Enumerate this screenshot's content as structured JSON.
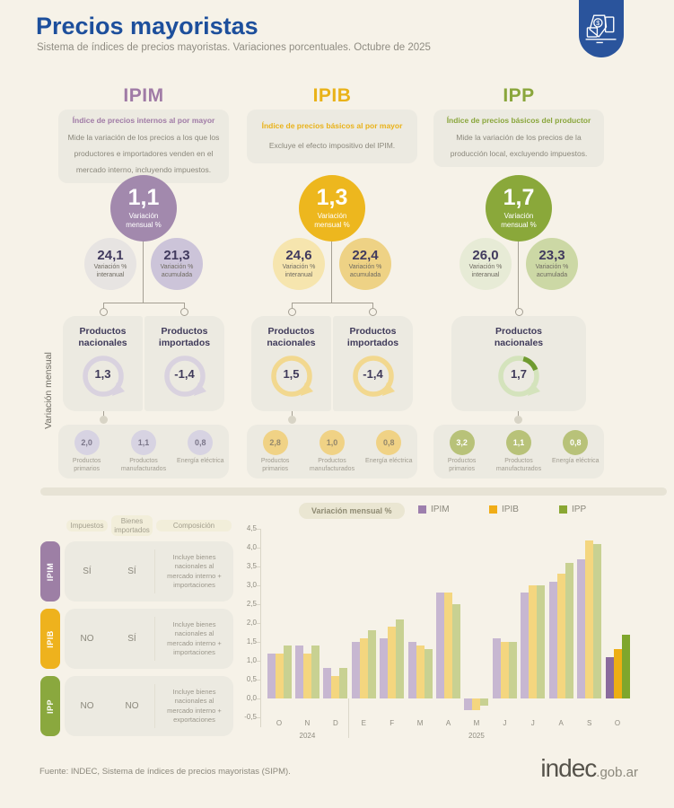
{
  "header": {
    "title": "Precios mayoristas",
    "subtitle": "Sistema de índices de precios mayoristas. Variaciones porcentuales. Octubre de 2025",
    "badge_icon": "price-tags-icon",
    "accent_color": "#1d4f9c",
    "badge_color": "#2a549c"
  },
  "section_label": "Variación mensual",
  "indices": [
    {
      "name": "IPIM",
      "color": "#9d7fa5",
      "subtitle": "Índice de precios internos al por mayor",
      "description": "Mide la variación de los precios a los que los productores e importadores venden en el mercado interno, incluyendo impuestos.",
      "monthly": "1,1",
      "monthly_label": "Variación mensual %",
      "interanual": "24,1",
      "interanual_label": "Variación % interanual",
      "acumulada": "21,3",
      "acumulada_label": "Variación % acumulada",
      "products": [
        {
          "label": "Productos nacionales",
          "value": "1,3"
        },
        {
          "label": "Productos importados",
          "value": "-1,4"
        }
      ],
      "breakdown": [
        {
          "label": "Productos primarios",
          "value": "2,0"
        },
        {
          "label": "Productos manufacturados",
          "value": "1,1"
        },
        {
          "label": "Energía eléctrica",
          "value": "0,8"
        }
      ]
    },
    {
      "name": "IPIB",
      "color": "#eeb21d",
      "subtitle": "Índice de precios básicos al por mayor",
      "description": "Excluye el efecto impositivo del IPIM.",
      "monthly": "1,3",
      "monthly_label": "Variación mensual %",
      "interanual": "24,6",
      "interanual_label": "Variación % interanual",
      "acumulada": "22,4",
      "acumulada_label": "Variación % acumulada",
      "products": [
        {
          "label": "Productos nacionales",
          "value": "1,5"
        },
        {
          "label": "Productos importados",
          "value": "-1,4"
        }
      ],
      "breakdown": [
        {
          "label": "Productos primarios",
          "value": "2,8"
        },
        {
          "label": "Productos manufacturados",
          "value": "1,0"
        },
        {
          "label": "Energía eléctrica",
          "value": "0,8"
        }
      ]
    },
    {
      "name": "IPP",
      "color": "#8aa83e",
      "subtitle": "Índice de precios básicos del productor",
      "description": "Mide la variación de los precios de la producción local, excluyendo impuestos.",
      "monthly": "1,7",
      "monthly_label": "Variación mensual %",
      "interanual": "26,0",
      "interanual_label": "Variación % interanual",
      "acumulada": "23,3",
      "acumulada_label": "Variación % acumulada",
      "products": [
        {
          "label": "Productos nacionales",
          "value": "1,7"
        }
      ],
      "breakdown": [
        {
          "label": "Productos primarios",
          "value": "3,2"
        },
        {
          "label": "Productos manufacturados",
          "value": "1,1"
        },
        {
          "label": "Energía eléctrica",
          "value": "0,8"
        }
      ]
    }
  ],
  "comparison_table": {
    "headers": [
      "Impuestos",
      "Bienes importados",
      "Composición"
    ],
    "rows": [
      {
        "index": "IPIM",
        "impuestos": "SÍ",
        "bienes_importados": "SÍ",
        "composicion": "Incluye bienes nacionales al mercado interno + importaciones"
      },
      {
        "index": "IPIB",
        "impuestos": "NO",
        "bienes_importados": "SÍ",
        "composicion": "Incluye bienes nacionales al mercado interno + importaciones"
      },
      {
        "index": "IPP",
        "impuestos": "NO",
        "bienes_importados": "NO",
        "composicion": "Incluye bienes nacionales al mercado interno + exportaciones"
      }
    ]
  },
  "chart_data": {
    "type": "bar",
    "title": "Variación mensual %",
    "categories": [
      "O",
      "N",
      "D",
      "E",
      "F",
      "M",
      "A",
      "M",
      "J",
      "J",
      "A",
      "S",
      "O"
    ],
    "year_labels": [
      {
        "label": "2024",
        "month_index": 1
      },
      {
        "label": "2025",
        "month_index": 7
      }
    ],
    "series": [
      {
        "name": "IPIM",
        "color": "#c7b7d1",
        "color_current": "#8a6b9d",
        "values": [
          1.2,
          1.4,
          0.8,
          1.5,
          1.6,
          1.5,
          2.8,
          -0.3,
          1.6,
          2.8,
          3.1,
          3.7,
          1.1
        ]
      },
      {
        "name": "IPIB",
        "color": "#f4d67f",
        "color_current": "#edae14",
        "values": [
          1.2,
          1.2,
          0.6,
          1.6,
          1.9,
          1.4,
          2.8,
          -0.3,
          1.5,
          3.0,
          3.3,
          4.2,
          1.3
        ]
      },
      {
        "name": "IPP",
        "color": "#c8d192",
        "color_current": "#7fa62c",
        "values": [
          1.4,
          1.4,
          0.8,
          1.8,
          2.1,
          1.3,
          2.5,
          -0.2,
          1.5,
          3.0,
          3.6,
          4.1,
          1.7
        ]
      }
    ],
    "ylim": [
      -0.5,
      4.5
    ],
    "ytick_step": 0.5,
    "grid": false,
    "legend_position": "top"
  },
  "footer": {
    "source": "Fuente: INDEC, Sistema de índices de precios mayoristas (SIPM).",
    "logo_main": "indec",
    "logo_suffix": ".gob.ar"
  }
}
